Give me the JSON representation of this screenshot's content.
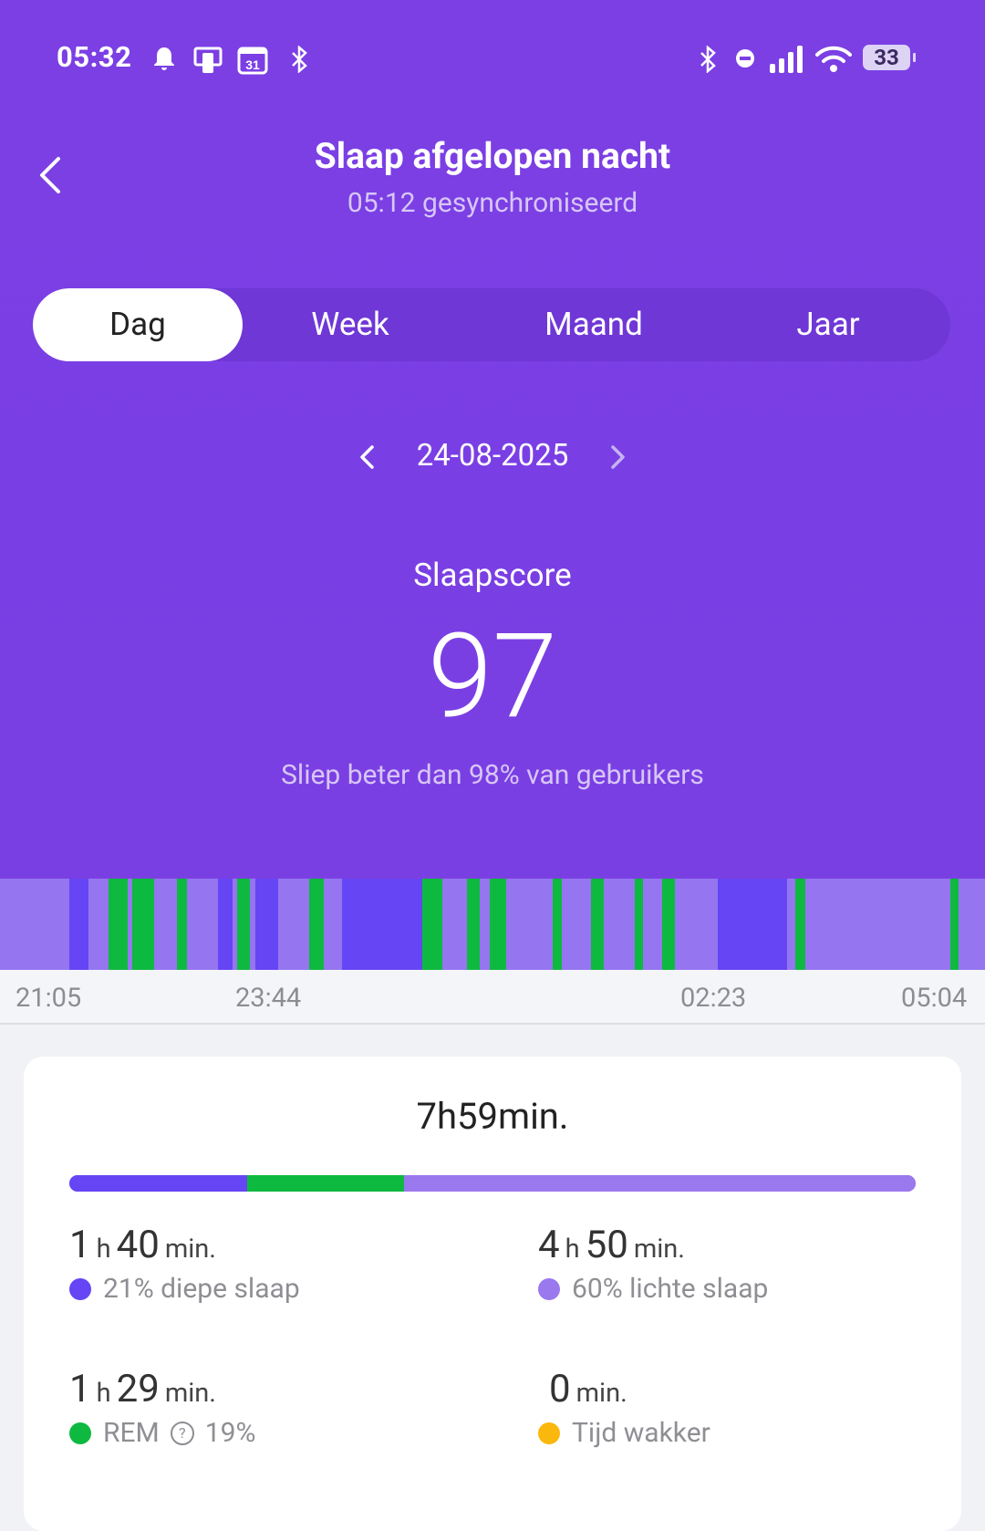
{
  "status_bar": {
    "time": "05:32",
    "battery": "33",
    "left_icons": [
      "bell-icon",
      "phone-link-icon",
      "calendar-icon",
      "bluetooth-icon"
    ],
    "right_icons": [
      "bluetooth-icon",
      "dnd-icon",
      "signal-icon",
      "wifi-icon",
      "battery-icon"
    ],
    "calendar_day": "31"
  },
  "header": {
    "title": "Slaap afgelopen nacht",
    "subtitle": "05:12 gesynchroniseerd"
  },
  "tabs": [
    {
      "label": "Dag",
      "active": true
    },
    {
      "label": "Week",
      "active": false
    },
    {
      "label": "Maand",
      "active": false
    },
    {
      "label": "Jaar",
      "active": false
    }
  ],
  "date_nav": {
    "date": "24-08-2025"
  },
  "score": {
    "label": "Slaapscore",
    "value": "97",
    "comparison": "Sliep beter dan 98% van gebruikers"
  },
  "colors": {
    "header_bg": "#7b3fe4",
    "deep": "#6645f5",
    "light": "#9575f0",
    "rem": "#0eb940",
    "awake": "#fbb80c"
  },
  "hypnogram": {
    "ticks": [
      "21:05",
      "23:44",
      "02:23",
      "05:04"
    ],
    "stages": [
      [
        "light",
        0.0,
        0.0706
      ],
      [
        "deep",
        0.0706,
        0.0902
      ],
      [
        "light",
        0.0902,
        0.1098
      ],
      [
        "rem",
        0.1098,
        0.1294
      ],
      [
        "light",
        0.1294,
        0.1343
      ],
      [
        "rem",
        0.1343,
        0.1569
      ],
      [
        "light",
        0.1569,
        0.1794
      ],
      [
        "rem",
        0.1794,
        0.1902
      ],
      [
        "light",
        0.1902,
        0.2216
      ],
      [
        "deep",
        0.2216,
        0.2363
      ],
      [
        "light",
        0.2363,
        0.2412
      ],
      [
        "rem",
        0.2412,
        0.2539
      ],
      [
        "light",
        0.2539,
        0.2588
      ],
      [
        "deep",
        0.2588,
        0.2824
      ],
      [
        "light",
        0.2824,
        0.3137
      ],
      [
        "rem",
        0.3137,
        0.3284
      ],
      [
        "light",
        0.3284,
        0.3471
      ],
      [
        "deep",
        0.3471,
        0.4284
      ],
      [
        "rem",
        0.4284,
        0.449
      ],
      [
        "light",
        0.449,
        0.4745
      ],
      [
        "rem",
        0.4745,
        0.4873
      ],
      [
        "light",
        0.4873,
        0.4971
      ],
      [
        "rem",
        0.4971,
        0.5137
      ],
      [
        "light",
        0.5137,
        0.5608
      ],
      [
        "rem",
        0.5608,
        0.5706
      ],
      [
        "light",
        0.5706,
        0.6
      ],
      [
        "rem",
        0.6,
        0.6127
      ],
      [
        "light",
        0.6127,
        0.6441
      ],
      [
        "rem",
        0.6441,
        0.6529
      ],
      [
        "light",
        0.6529,
        0.6725
      ],
      [
        "rem",
        0.6725,
        0.6853
      ],
      [
        "light",
        0.6853,
        0.7284
      ],
      [
        "deep",
        0.7284,
        0.799
      ],
      [
        "light",
        0.799,
        0.8078
      ],
      [
        "rem",
        0.8078,
        0.8176
      ],
      [
        "light",
        0.8176,
        0.9647
      ],
      [
        "rem",
        0.9647,
        0.9735
      ],
      [
        "light",
        0.9735,
        1.0
      ]
    ]
  },
  "summary": {
    "total": "7h59min.",
    "bar": [
      {
        "stage": "deep",
        "fraction": 0.21
      },
      {
        "stage": "rem",
        "fraction": 0.185
      },
      {
        "stage": "light",
        "fraction": 0.605
      }
    ],
    "stats": [
      {
        "h": "1",
        "h_unit": "h",
        "m": "40",
        "m_unit": "min.",
        "label": "21% diepe slaap",
        "dot": "#6645f5"
      },
      {
        "h": "4",
        "h_unit": "h",
        "m": "50",
        "m_unit": "min.",
        "label": "60% lichte slaap",
        "dot": "#9a78ee"
      },
      {
        "h": "1",
        "h_unit": "h",
        "m": "29",
        "m_unit": "min.",
        "label": "REM",
        "label_extra": "19%",
        "dot": "#0eb940"
      },
      {
        "h": "",
        "h_unit": "",
        "m": "0",
        "m_unit": "min.",
        "label": "Tijd wakker",
        "dot": "#fbb80c"
      }
    ]
  }
}
